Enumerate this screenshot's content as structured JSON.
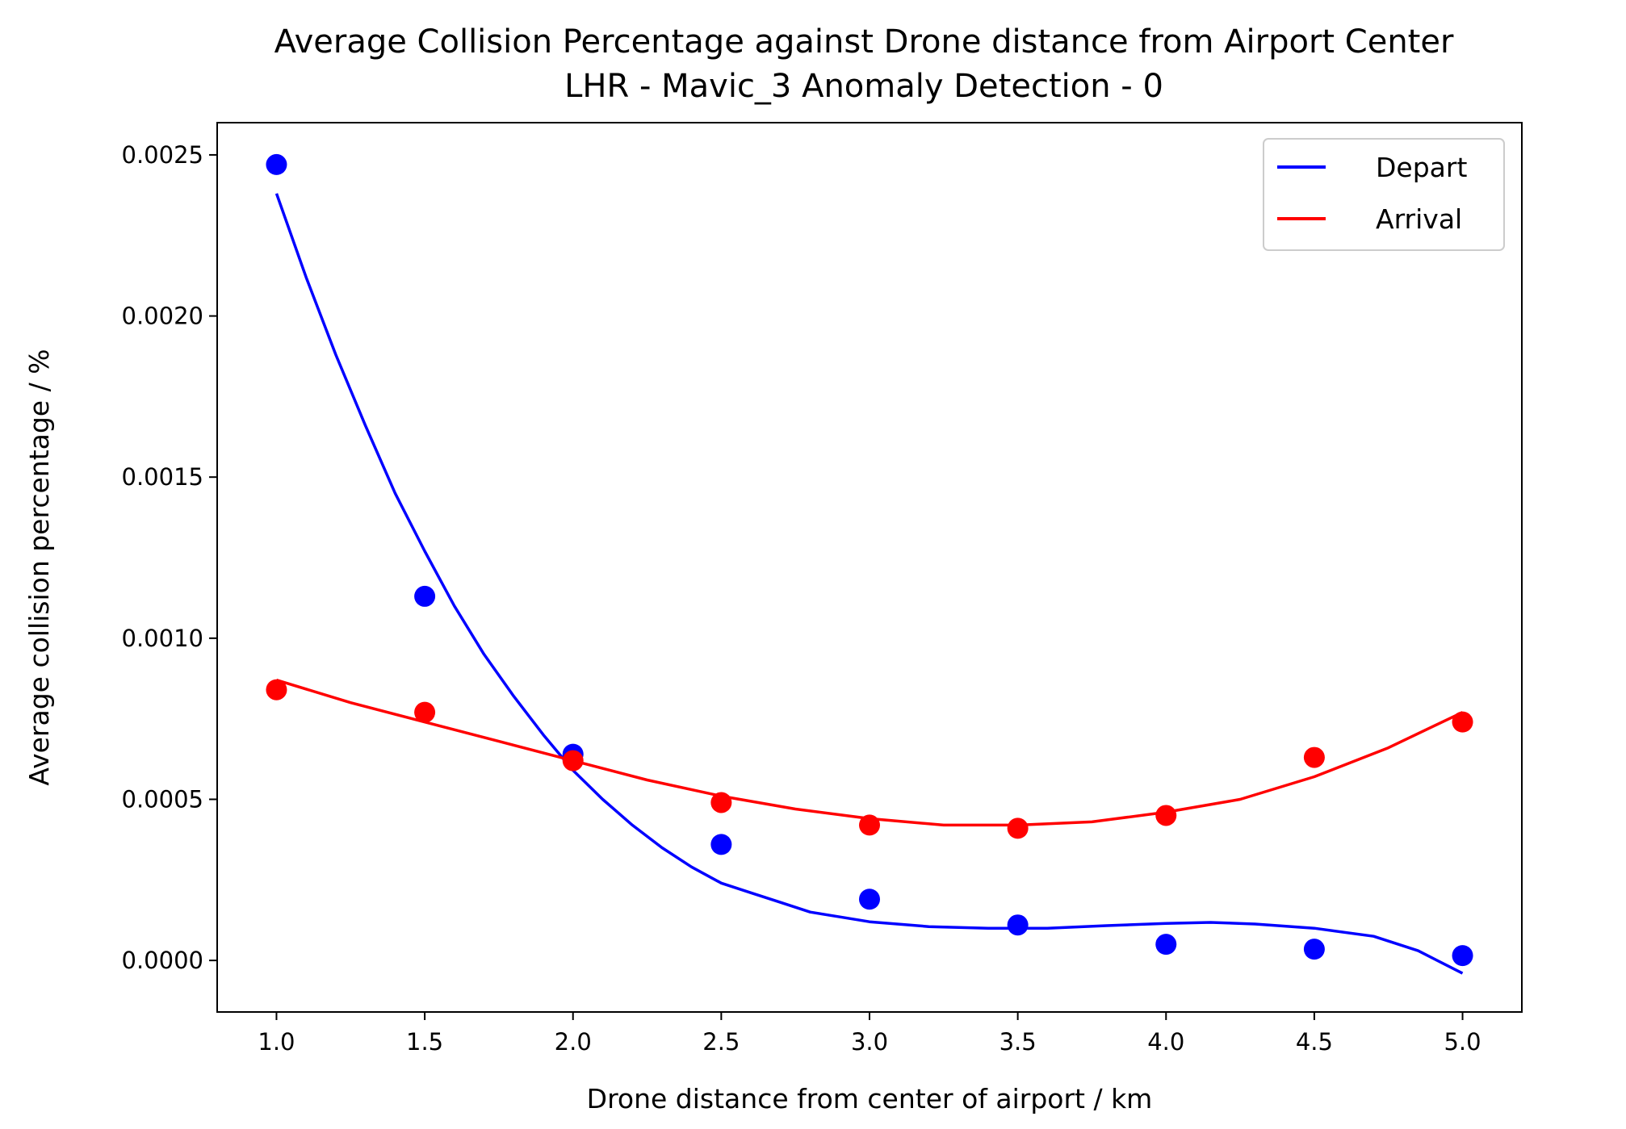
{
  "chart_data": {
    "type": "scatter",
    "title": "Average Collision Percentage against Drone distance from Airport Center",
    "subtitle": "LHR - Mavic_3 Anomaly Detection - 0",
    "xlabel": "Drone distance from center of airport / km",
    "ylabel": "Average collision percentage / %",
    "xlim": [
      0.8,
      5.2
    ],
    "ylim": [
      -0.00016,
      0.0026
    ],
    "x_ticks": [
      1.0,
      1.5,
      2.0,
      2.5,
      3.0,
      3.5,
      4.0,
      4.5,
      5.0
    ],
    "x_tick_labels": [
      "1.0",
      "1.5",
      "2.0",
      "2.5",
      "3.0",
      "3.5",
      "4.0",
      "4.5",
      "5.0"
    ],
    "y_ticks": [
      0.0,
      0.0005,
      0.001,
      0.0015,
      0.002,
      0.0025
    ],
    "y_tick_labels": [
      "0.0000",
      "0.0005",
      "0.0010",
      "0.0015",
      "0.0020",
      "0.0025"
    ],
    "grid": false,
    "legend_position": "top-right",
    "series": [
      {
        "name": "Depart",
        "color": "#0000ff",
        "x": [
          1.0,
          1.5,
          2.0,
          2.5,
          3.0,
          3.5,
          4.0,
          4.5,
          5.0
        ],
        "points": [
          0.00247,
          0.00113,
          0.00064,
          0.00036,
          0.00019,
          0.00011,
          5e-05,
          3.5e-05,
          1.5e-05
        ],
        "fit": [
          [
            1.0,
            0.00238
          ],
          [
            1.1,
            0.00212
          ],
          [
            1.2,
            0.00188
          ],
          [
            1.3,
            0.00166
          ],
          [
            1.4,
            0.00145
          ],
          [
            1.5,
            0.00127
          ],
          [
            1.6,
            0.0011
          ],
          [
            1.7,
            0.00095
          ],
          [
            1.8,
            0.00082
          ],
          [
            1.9,
            0.0007
          ],
          [
            2.0,
            0.00059
          ],
          [
            2.1,
            0.0005
          ],
          [
            2.2,
            0.00042
          ],
          [
            2.3,
            0.00035
          ],
          [
            2.4,
            0.00029
          ],
          [
            2.5,
            0.00024
          ],
          [
            2.6,
            0.00021
          ],
          [
            2.7,
            0.00018
          ],
          [
            2.8,
            0.00015
          ],
          [
            2.9,
            0.000135
          ],
          [
            3.0,
            0.00012
          ],
          [
            3.2,
            0.000105
          ],
          [
            3.4,
            0.0001
          ],
          [
            3.6,
            0.0001
          ],
          [
            3.8,
            0.000108
          ],
          [
            4.0,
            0.000115
          ],
          [
            4.15,
            0.000118
          ],
          [
            4.3,
            0.000113
          ],
          [
            4.5,
            0.0001
          ],
          [
            4.7,
            7.5e-05
          ],
          [
            4.85,
            3e-05
          ],
          [
            5.0,
            -4e-05
          ]
        ]
      },
      {
        "name": "Arrival",
        "color": "#ff0000",
        "x": [
          1.0,
          1.5,
          2.0,
          2.5,
          3.0,
          3.5,
          4.0,
          4.5,
          5.0
        ],
        "points": [
          0.00084,
          0.00077,
          0.00062,
          0.00049,
          0.00042,
          0.00041,
          0.00045,
          0.00063,
          0.00074
        ],
        "fit": [
          [
            1.0,
            0.00087
          ],
          [
            1.25,
            0.0008
          ],
          [
            1.5,
            0.00074
          ],
          [
            1.75,
            0.00068
          ],
          [
            2.0,
            0.00062
          ],
          [
            2.25,
            0.00056
          ],
          [
            2.5,
            0.00051
          ],
          [
            2.75,
            0.00047
          ],
          [
            3.0,
            0.00044
          ],
          [
            3.25,
            0.00042
          ],
          [
            3.5,
            0.00042
          ],
          [
            3.75,
            0.00043
          ],
          [
            4.0,
            0.00046
          ],
          [
            4.25,
            0.0005
          ],
          [
            4.5,
            0.00057
          ],
          [
            4.75,
            0.00066
          ],
          [
            5.0,
            0.00077
          ]
        ]
      }
    ]
  }
}
